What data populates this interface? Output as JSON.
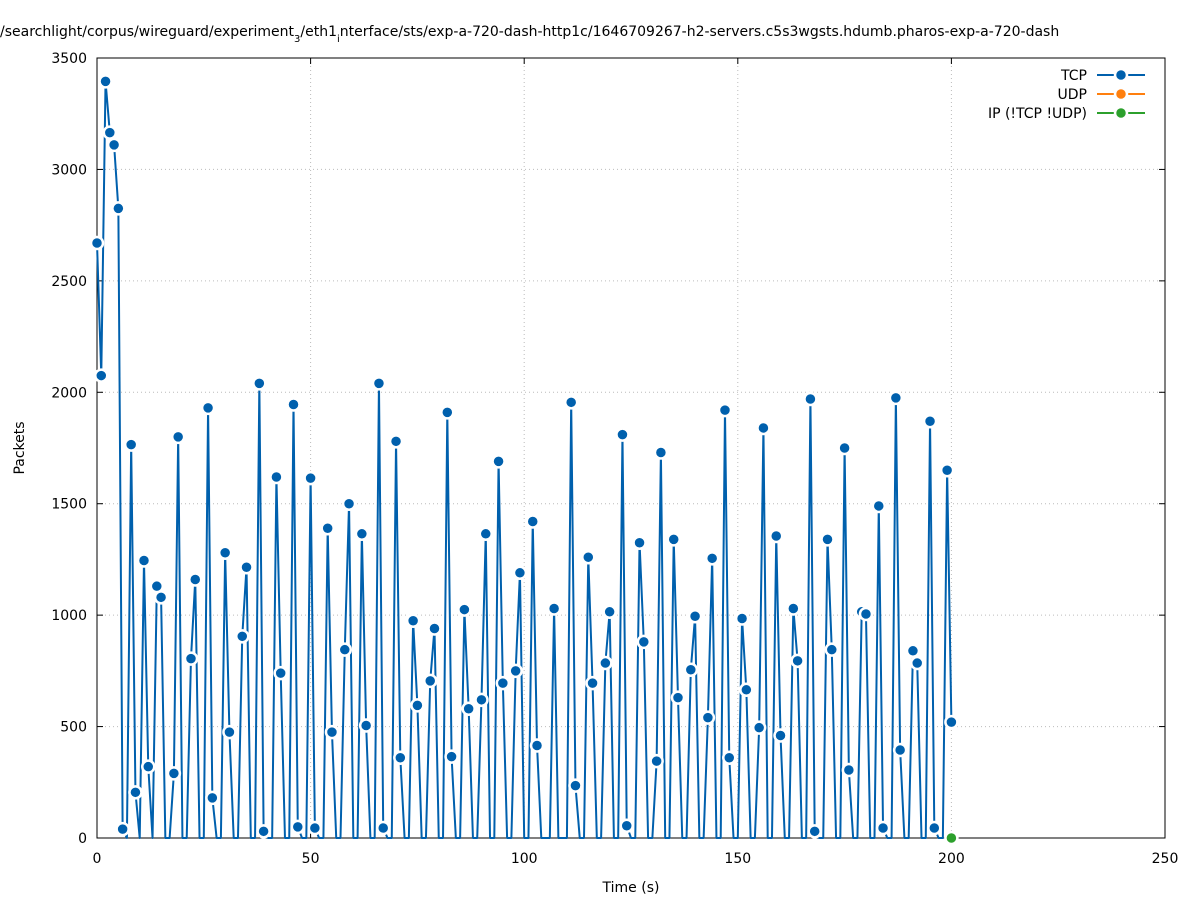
{
  "chart_data": {
    "type": "line",
    "title": "/searchlight/corpus/wireguard/experiment",
    "title_sub": "3",
    "title_rest": "/eth1",
    "title_sub2": "i",
    "title_tail": "nterface/sts/exp-a-720-dash-http1c/1646709267-h2-servers.c5s3wgsts.hdumb.pharos-exp-a-720-dash",
    "xlabel": "Time (s)",
    "ylabel": "Packets",
    "xlim": [
      0,
      250
    ],
    "ylim": [
      0,
      3500
    ],
    "xticks": [
      0,
      50,
      100,
      150,
      200,
      250
    ],
    "yticks": [
      0,
      500,
      1000,
      1500,
      2000,
      2500,
      3000,
      3500
    ],
    "grid": true,
    "legend_position": "top-right",
    "series": [
      {
        "name": "TCP",
        "color": "#0060ad",
        "x": [
          0,
          1,
          2,
          3,
          4,
          5,
          6,
          7,
          8,
          9,
          10,
          11,
          12,
          13,
          14,
          15,
          16,
          17,
          18,
          19,
          20,
          21,
          22,
          23,
          24,
          25,
          26,
          27,
          28,
          29,
          30,
          31,
          32,
          33,
          34,
          35,
          36,
          37,
          38,
          39,
          40,
          41,
          42,
          43,
          44,
          45,
          46,
          47,
          48,
          49,
          50,
          51,
          52,
          53,
          54,
          55,
          56,
          57,
          58,
          59,
          60,
          61,
          62,
          63,
          64,
          65,
          66,
          67,
          68,
          69,
          70,
          71,
          72,
          73,
          74,
          75,
          76,
          77,
          78,
          79,
          80,
          81,
          82,
          83,
          84,
          85,
          86,
          87,
          88,
          89,
          90,
          91,
          92,
          93,
          94,
          95,
          96,
          97,
          98,
          99,
          100,
          101,
          102,
          103,
          104,
          105,
          106,
          107,
          108,
          109,
          110,
          111,
          112,
          113,
          114,
          115,
          116,
          117,
          118,
          119,
          120,
          121,
          122,
          123,
          124,
          125,
          126,
          127,
          128,
          129,
          130,
          131,
          132,
          133,
          134,
          135,
          136,
          137,
          138,
          139,
          140,
          141,
          142,
          143,
          144,
          145,
          146,
          147,
          148,
          149,
          150,
          151,
          152,
          153,
          154,
          155,
          156,
          157,
          158,
          159,
          160,
          161,
          162,
          163,
          164,
          165,
          166,
          167,
          168,
          169,
          170,
          171,
          172,
          173,
          174,
          175,
          176,
          177,
          178,
          179,
          180,
          181,
          182,
          183,
          184,
          185,
          186,
          187,
          188,
          189,
          190,
          191,
          192,
          193,
          194,
          195,
          196,
          197,
          198,
          199,
          200
        ],
        "y": [
          2670,
          2075,
          3395,
          3165,
          3110,
          2825,
          40,
          0,
          1765,
          205,
          0,
          1245,
          320,
          0,
          1130,
          1080,
          0,
          0,
          290,
          1800,
          0,
          0,
          805,
          1160,
          0,
          0,
          1930,
          180,
          0,
          0,
          1280,
          475,
          0,
          0,
          905,
          1215,
          0,
          0,
          2040,
          30,
          0,
          0,
          1620,
          740,
          0,
          0,
          1945,
          50,
          0,
          0,
          1615,
          45,
          0,
          0,
          1390,
          475,
          0,
          0,
          845,
          1500,
          0,
          0,
          1365,
          505,
          0,
          0,
          2040,
          45,
          0,
          0,
          1780,
          360,
          0,
          0,
          975,
          595,
          0,
          0,
          705,
          940,
          0,
          0,
          1910,
          365,
          0,
          0,
          1025,
          580,
          0,
          0,
          620,
          1365,
          0,
          0,
          1690,
          695,
          0,
          0,
          750,
          1190,
          0,
          0,
          1420,
          415,
          0,
          0,
          0,
          1030,
          0,
          0,
          0,
          1955,
          235,
          0,
          0,
          1260,
          695,
          0,
          0,
          785,
          1015,
          0,
          0,
          1810,
          55,
          0,
          0,
          1325,
          880,
          0,
          0,
          345,
          1730,
          0,
          0,
          1340,
          630,
          0,
          0,
          755,
          995,
          0,
          0,
          540,
          1255,
          0,
          0,
          1920,
          360,
          0,
          0,
          985,
          665,
          0,
          0,
          495,
          1840,
          0,
          0,
          1355,
          460,
          0,
          0,
          1030,
          795,
          0,
          0,
          1970,
          30,
          0,
          0,
          1340,
          845,
          0,
          0,
          1750,
          305,
          0,
          0,
          1015,
          1005,
          0,
          0,
          1490,
          45,
          0,
          0,
          1975,
          395,
          0,
          0,
          840,
          785,
          0,
          0,
          1870,
          45,
          0,
          0,
          1650,
          520
        ]
      },
      {
        "name": "UDP",
        "color": "#ff7f0e",
        "x": [],
        "y": []
      },
      {
        "name": "IP (!TCP  !UDP)",
        "color": "#2ca02c",
        "x": [
          200
        ],
        "y": [
          0
        ]
      }
    ]
  }
}
